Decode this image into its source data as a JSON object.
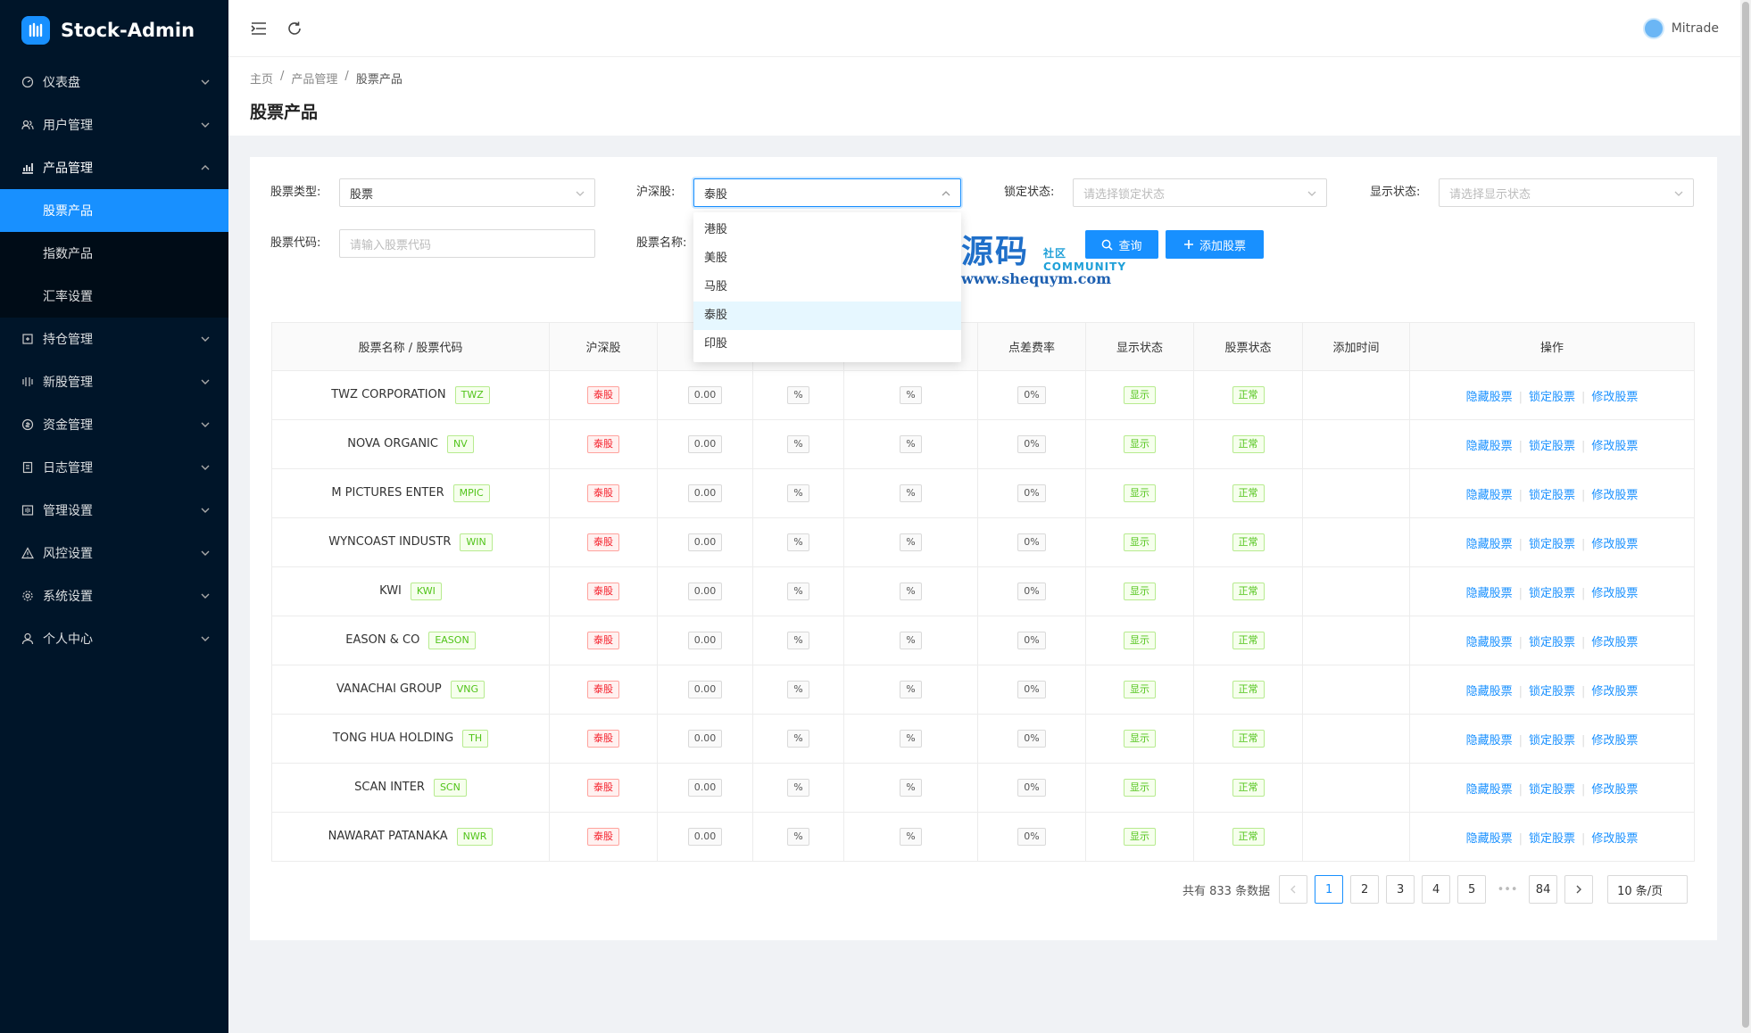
{
  "app": {
    "name": "Stock-Admin"
  },
  "sidebar": {
    "items": [
      {
        "label": "仪表盘",
        "icon": "dashboard-icon"
      },
      {
        "label": "用户管理",
        "icon": "users-icon"
      },
      {
        "label": "产品管理",
        "icon": "chart-icon",
        "expanded": true,
        "children": [
          {
            "label": "股票产品",
            "active": true
          },
          {
            "label": "指数产品"
          },
          {
            "label": "汇率设置"
          }
        ]
      },
      {
        "label": "持仓管理",
        "icon": "position-icon"
      },
      {
        "label": "新股管理",
        "icon": "ipo-icon"
      },
      {
        "label": "资金管理",
        "icon": "money-icon"
      },
      {
        "label": "日志管理",
        "icon": "log-icon"
      },
      {
        "label": "管理设置",
        "icon": "admin-settings-icon"
      },
      {
        "label": "风控设置",
        "icon": "warning-icon"
      },
      {
        "label": "系统设置",
        "icon": "gear-icon"
      },
      {
        "label": "个人中心",
        "icon": "user-icon"
      }
    ]
  },
  "topbar": {
    "username": "Mitrade"
  },
  "breadcrumb": [
    "主页",
    "产品管理",
    "股票产品"
  ],
  "page_title": "股票产品",
  "filters": {
    "stock_type": {
      "label": "股票类型:",
      "value": "股票"
    },
    "market": {
      "label": "沪深股:",
      "value": "泰股"
    },
    "lock_status": {
      "label": "锁定状态:",
      "placeholder": "请选择锁定状态"
    },
    "display_status": {
      "label": "显示状态:",
      "placeholder": "请选择显示状态"
    },
    "stock_code": {
      "label": "股票代码:",
      "placeholder": "请输入股票代码"
    },
    "stock_name": {
      "label": "股票名称:"
    }
  },
  "buttons": {
    "search": "查询",
    "add": "添加股票"
  },
  "market_dropdown": {
    "options": [
      "港股",
      "美股",
      "马股",
      "泰股",
      "印股"
    ],
    "selected": "泰股"
  },
  "watermark": {
    "big": "源码",
    "small": "社区",
    "community": "COMMUNITY",
    "url": "www.shequym.com"
  },
  "table": {
    "headers": [
      "股票名称 / 股票代码",
      "沪深股",
      "",
      "",
      "",
      "点差费率",
      "显示状态",
      "股票状态",
      "添加时间",
      "操作"
    ],
    "rows": [
      {
        "name": "TWZ CORPORATION",
        "code": "TWZ"
      },
      {
        "name": "NOVA ORGANIC",
        "code": "NV"
      },
      {
        "name": "M PICTURES ENTER",
        "code": "MPIC"
      },
      {
        "name": "WYNCOAST INDUSTR",
        "code": "WIN"
      },
      {
        "name": "KWI",
        "code": "KWI"
      },
      {
        "name": "EASON & CO",
        "code": "EASON"
      },
      {
        "name": "VANACHAI GROUP",
        "code": "VNG"
      },
      {
        "name": "TONG HUA HOLDING",
        "code": "TH"
      },
      {
        "name": "SCAN INTER",
        "code": "SCN"
      },
      {
        "name": "NAWARAT PATANAKA",
        "code": "NWR"
      }
    ],
    "row_common": {
      "market": "泰股",
      "value": "0.00",
      "pct1": "%",
      "pct2": "%",
      "spread": "0%",
      "display": "显示",
      "status": "正常",
      "actions": [
        "隐藏股票",
        "锁定股票",
        "修改股票"
      ]
    }
  },
  "pagination": {
    "total_text": "共有 833 条数据",
    "pages": [
      "1",
      "2",
      "3",
      "4",
      "5"
    ],
    "ellipsis": "•••",
    "last": "84",
    "current": "1",
    "page_size": "10 条/页"
  }
}
